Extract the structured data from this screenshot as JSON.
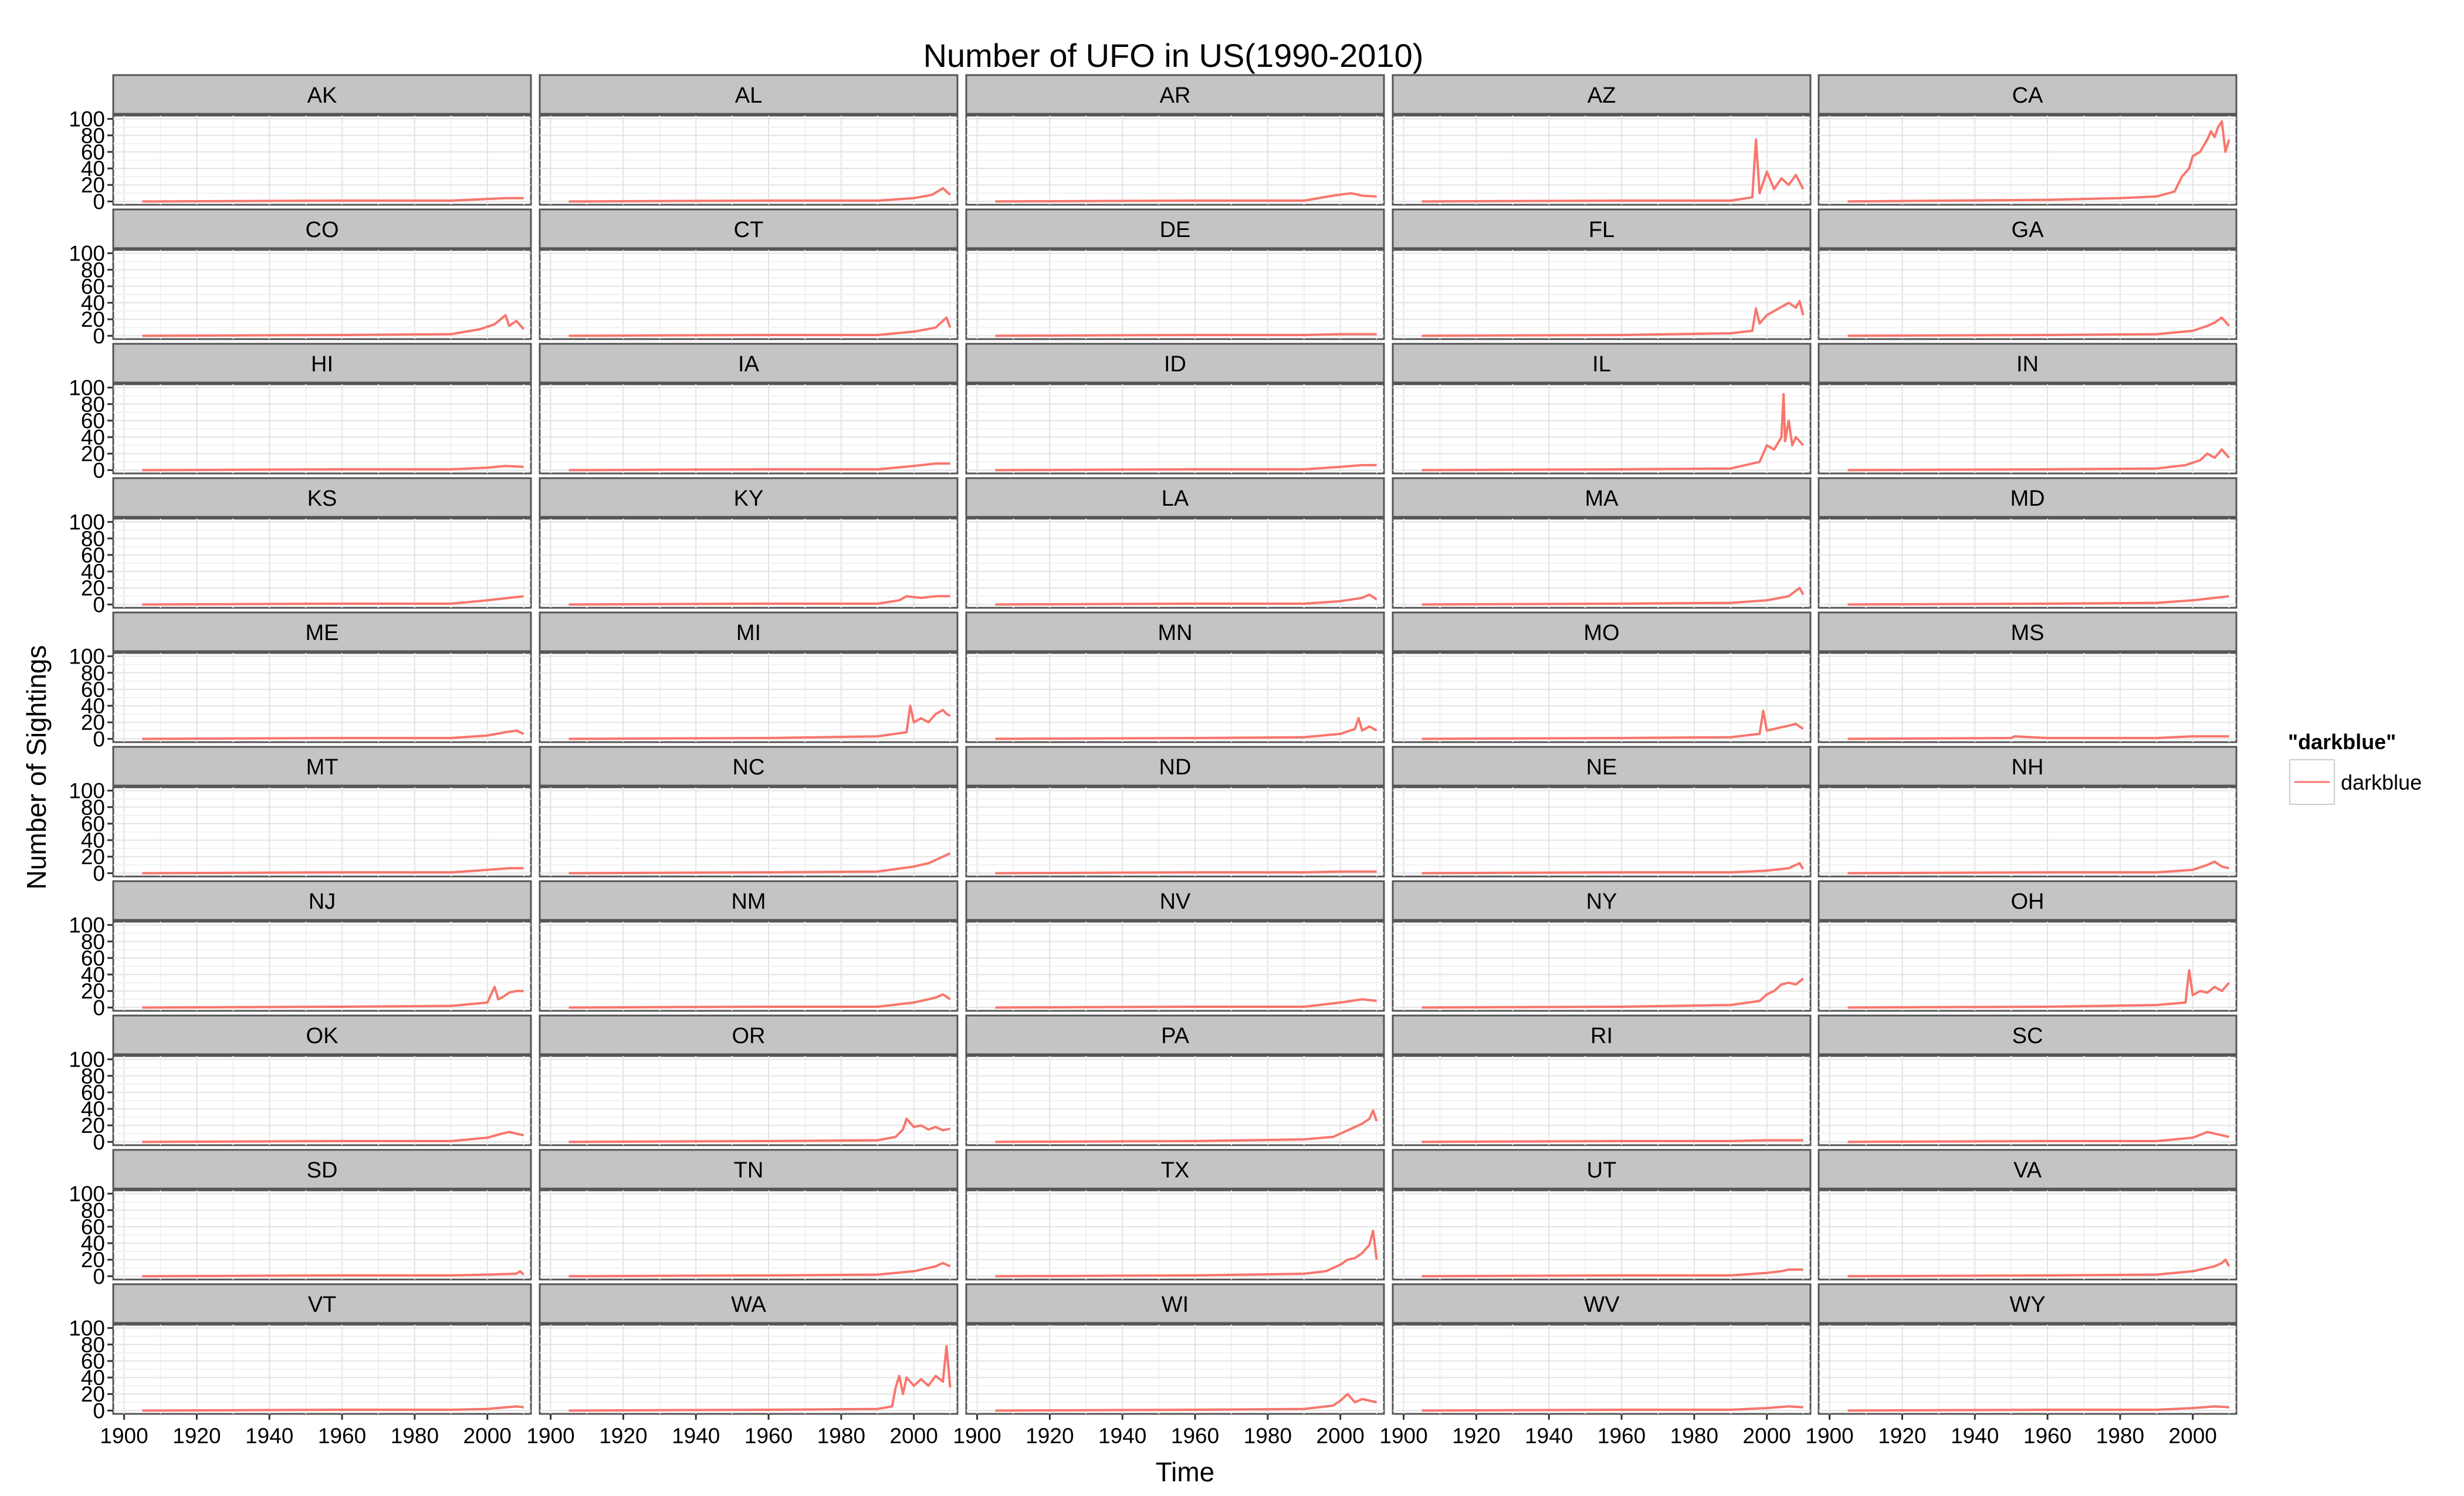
{
  "chart_data": {
    "type": "line",
    "title": "Number of UFO in US(1990-2010)",
    "xlabel": "Time",
    "ylabel": "Number of Sightings",
    "xlim": [
      1897,
      2012
    ],
    "ylim": [
      -4,
      104
    ],
    "x_ticks": [
      1900,
      1920,
      1940,
      1960,
      1980,
      2000
    ],
    "y_ticks": [
      0,
      20,
      40,
      60,
      80,
      100
    ],
    "grid": true,
    "layout": {
      "columns": 5,
      "rows": 10
    },
    "line_color": "#F8766D",
    "legend": {
      "title": "\"darkblue\"",
      "label": "darkblue",
      "position": "right"
    },
    "panels": [
      {
        "state": "AK",
        "x": [
          1905,
          1960,
          1990,
          2000,
          2005,
          2010
        ],
        "y": [
          0,
          1,
          1,
          3,
          4,
          4
        ]
      },
      {
        "state": "AL",
        "x": [
          1905,
          1960,
          1990,
          2000,
          2005,
          2008,
          2010
        ],
        "y": [
          0,
          1,
          1,
          4,
          8,
          16,
          8
        ]
      },
      {
        "state": "AR",
        "x": [
          1905,
          1960,
          1990,
          1998,
          2003,
          2006,
          2010
        ],
        "y": [
          0,
          1,
          1,
          7,
          10,
          7,
          6
        ]
      },
      {
        "state": "AZ",
        "x": [
          1905,
          1960,
          1990,
          1996,
          1997,
          1998,
          2000,
          2002,
          2004,
          2006,
          2008,
          2010
        ],
        "y": [
          0,
          1,
          1,
          5,
          75,
          10,
          36,
          15,
          28,
          20,
          32,
          15
        ]
      },
      {
        "state": "CA",
        "x": [
          1905,
          1960,
          1980,
          1990,
          1995,
          1997,
          1999,
          2000,
          2002,
          2004,
          2005,
          2006,
          2007,
          2008,
          2009,
          2010
        ],
        "y": [
          0,
          2,
          4,
          6,
          12,
          30,
          40,
          55,
          60,
          75,
          85,
          78,
          90,
          97,
          60,
          75
        ]
      },
      {
        "state": "CO",
        "x": [
          1905,
          1960,
          1990,
          1998,
          2002,
          2005,
          2006,
          2008,
          2010
        ],
        "y": [
          0,
          1,
          2,
          8,
          14,
          25,
          12,
          18,
          8
        ]
      },
      {
        "state": "CT",
        "x": [
          1905,
          1960,
          1990,
          2000,
          2006,
          2009,
          2010
        ],
        "y": [
          0,
          1,
          1,
          5,
          10,
          22,
          10
        ]
      },
      {
        "state": "DE",
        "x": [
          1905,
          1960,
          1990,
          2000,
          2010
        ],
        "y": [
          0,
          1,
          1,
          2,
          2
        ]
      },
      {
        "state": "FL",
        "x": [
          1905,
          1960,
          1990,
          1996,
          1997,
          1998,
          2000,
          2002,
          2004,
          2006,
          2008,
          2009,
          2010
        ],
        "y": [
          0,
          1,
          3,
          6,
          33,
          15,
          25,
          30,
          35,
          40,
          34,
          42,
          25
        ]
      },
      {
        "state": "GA",
        "x": [
          1905,
          1960,
          1990,
          2000,
          2004,
          2006,
          2008,
          2010
        ],
        "y": [
          0,
          1,
          2,
          6,
          12,
          16,
          22,
          12
        ]
      },
      {
        "state": "HI",
        "x": [
          1905,
          1960,
          1990,
          2000,
          2005,
          2010
        ],
        "y": [
          0,
          1,
          1,
          3,
          5,
          4
        ]
      },
      {
        "state": "IA",
        "x": [
          1905,
          1960,
          1990,
          2000,
          2006,
          2010
        ],
        "y": [
          0,
          1,
          1,
          5,
          8,
          8
        ]
      },
      {
        "state": "ID",
        "x": [
          1905,
          1960,
          1990,
          2000,
          2006,
          2010
        ],
        "y": [
          0,
          1,
          1,
          4,
          6,
          6
        ]
      },
      {
        "state": "IL",
        "x": [
          1905,
          1960,
          1990,
          1998,
          2000,
          2002,
          2004,
          2004.6,
          2005,
          2006,
          2007,
          2008,
          2010
        ],
        "y": [
          0,
          1,
          2,
          10,
          30,
          25,
          40,
          92,
          35,
          60,
          30,
          40,
          30
        ]
      },
      {
        "state": "IN",
        "x": [
          1905,
          1960,
          1990,
          1998,
          2002,
          2004,
          2006,
          2008,
          2010
        ],
        "y": [
          0,
          1,
          2,
          6,
          12,
          20,
          15,
          25,
          15
        ]
      },
      {
        "state": "KS",
        "x": [
          1905,
          1960,
          1990,
          2000,
          2006,
          2010
        ],
        "y": [
          0,
          1,
          1,
          5,
          8,
          10
        ]
      },
      {
        "state": "KY",
        "x": [
          1905,
          1960,
          1990,
          1996,
          1998,
          2002,
          2006,
          2010
        ],
        "y": [
          0,
          1,
          1,
          5,
          10,
          8,
          10,
          10
        ]
      },
      {
        "state": "LA",
        "x": [
          1905,
          1960,
          1990,
          2000,
          2006,
          2008,
          2010
        ],
        "y": [
          0,
          1,
          1,
          4,
          8,
          12,
          6
        ]
      },
      {
        "state": "MA",
        "x": [
          1905,
          1960,
          1990,
          2000,
          2006,
          2009,
          2010
        ],
        "y": [
          0,
          1,
          2,
          5,
          10,
          20,
          12
        ]
      },
      {
        "state": "MD",
        "x": [
          1905,
          1960,
          1990,
          2000,
          2006,
          2010
        ],
        "y": [
          0,
          1,
          2,
          5,
          8,
          10
        ]
      },
      {
        "state": "ME",
        "x": [
          1905,
          1960,
          1990,
          2000,
          2005,
          2008,
          2010
        ],
        "y": [
          0,
          1,
          1,
          4,
          8,
          10,
          6
        ]
      },
      {
        "state": "MI",
        "x": [
          1905,
          1960,
          1990,
          1998,
          1999,
          2000,
          2002,
          2004,
          2006,
          2008,
          2009,
          2010
        ],
        "y": [
          0,
          1,
          3,
          8,
          40,
          20,
          25,
          20,
          30,
          35,
          30,
          28
        ]
      },
      {
        "state": "MN",
        "x": [
          1905,
          1960,
          1990,
          2000,
          2004,
          2005,
          2006,
          2008,
          2010
        ],
        "y": [
          0,
          1,
          2,
          6,
          12,
          25,
          10,
          15,
          10
        ]
      },
      {
        "state": "MO",
        "x": [
          1905,
          1960,
          1990,
          1998,
          1999,
          2000,
          2004,
          2006,
          2008,
          2010
        ],
        "y": [
          0,
          1,
          2,
          6,
          34,
          10,
          14,
          16,
          18,
          12
        ]
      },
      {
        "state": "MS",
        "x": [
          1905,
          1950,
          1951,
          1960,
          1990,
          2000,
          2010
        ],
        "y": [
          0,
          1,
          3,
          1,
          1,
          3,
          3
        ]
      },
      {
        "state": "MT",
        "x": [
          1905,
          1960,
          1990,
          2000,
          2006,
          2010
        ],
        "y": [
          0,
          1,
          1,
          4,
          6,
          6
        ]
      },
      {
        "state": "NC",
        "x": [
          1905,
          1960,
          1990,
          2000,
          2004,
          2006,
          2008,
          2010
        ],
        "y": [
          0,
          1,
          2,
          8,
          12,
          16,
          20,
          24
        ]
      },
      {
        "state": "ND",
        "x": [
          1905,
          1960,
          1990,
          2000,
          2010
        ],
        "y": [
          0,
          1,
          1,
          2,
          2
        ]
      },
      {
        "state": "NE",
        "x": [
          1905,
          1960,
          1990,
          2000,
          2006,
          2009,
          2010
        ],
        "y": [
          0,
          1,
          1,
          3,
          6,
          12,
          5
        ]
      },
      {
        "state": "NH",
        "x": [
          1905,
          1960,
          1990,
          2000,
          2004,
          2006,
          2008,
          2010
        ],
        "y": [
          0,
          1,
          1,
          4,
          10,
          14,
          8,
          6
        ]
      },
      {
        "state": "NJ",
        "x": [
          1905,
          1960,
          1990,
          2000,
          2002,
          2003,
          2004,
          2006,
          2008,
          2010
        ],
        "y": [
          0,
          1,
          2,
          6,
          25,
          10,
          12,
          18,
          20,
          20
        ]
      },
      {
        "state": "NM",
        "x": [
          1905,
          1960,
          1990,
          2000,
          2006,
          2008,
          2010
        ],
        "y": [
          0,
          1,
          1,
          6,
          12,
          16,
          10
        ]
      },
      {
        "state": "NV",
        "x": [
          1905,
          1960,
          1990,
          2000,
          2006,
          2010
        ],
        "y": [
          0,
          1,
          1,
          6,
          10,
          8
        ]
      },
      {
        "state": "NY",
        "x": [
          1905,
          1960,
          1990,
          1998,
          2000,
          2002,
          2004,
          2006,
          2008,
          2010
        ],
        "y": [
          0,
          1,
          3,
          8,
          16,
          20,
          28,
          30,
          28,
          35
        ]
      },
      {
        "state": "OH",
        "x": [
          1905,
          1960,
          1990,
          1998,
          1999,
          2000,
          2002,
          2004,
          2006,
          2008,
          2010
        ],
        "y": [
          0,
          1,
          3,
          6,
          45,
          15,
          20,
          18,
          25,
          20,
          30
        ]
      },
      {
        "state": "OK",
        "x": [
          1905,
          1960,
          1990,
          2000,
          2004,
          2006,
          2008,
          2010
        ],
        "y": [
          0,
          1,
          1,
          5,
          10,
          12,
          10,
          8
        ]
      },
      {
        "state": "OR",
        "x": [
          1905,
          1960,
          1990,
          1995,
          1997,
          1998,
          2000,
          2002,
          2004,
          2006,
          2008,
          2010
        ],
        "y": [
          0,
          1,
          2,
          6,
          15,
          28,
          18,
          20,
          15,
          18,
          14,
          16
        ]
      },
      {
        "state": "PA",
        "x": [
          1905,
          1960,
          1990,
          1998,
          2000,
          2002,
          2004,
          2006,
          2008,
          2009,
          2010
        ],
        "y": [
          0,
          1,
          3,
          6,
          10,
          14,
          18,
          22,
          28,
          38,
          25
        ]
      },
      {
        "state": "RI",
        "x": [
          1905,
          1960,
          1990,
          2000,
          2010
        ],
        "y": [
          0,
          1,
          1,
          2,
          2
        ]
      },
      {
        "state": "SC",
        "x": [
          1905,
          1960,
          1990,
          2000,
          2004,
          2006,
          2008,
          2010
        ],
        "y": [
          0,
          1,
          1,
          5,
          12,
          10,
          8,
          6
        ]
      },
      {
        "state": "SD",
        "x": [
          1905,
          1960,
          1990,
          2000,
          2008,
          2009,
          2010
        ],
        "y": [
          0,
          1,
          1,
          2,
          3,
          6,
          2
        ]
      },
      {
        "state": "TN",
        "x": [
          1905,
          1960,
          1990,
          2000,
          2004,
          2006,
          2008,
          2010
        ],
        "y": [
          0,
          1,
          2,
          6,
          10,
          12,
          16,
          12
        ]
      },
      {
        "state": "TX",
        "x": [
          1905,
          1960,
          1990,
          1996,
          1998,
          2000,
          2002,
          2004,
          2006,
          2008,
          2009,
          2010
        ],
        "y": [
          0,
          1,
          3,
          6,
          10,
          14,
          20,
          22,
          28,
          38,
          55,
          20
        ]
      },
      {
        "state": "UT",
        "x": [
          1905,
          1960,
          1990,
          2000,
          2004,
          2006,
          2010
        ],
        "y": [
          0,
          1,
          1,
          4,
          6,
          8,
          8
        ]
      },
      {
        "state": "VA",
        "x": [
          1905,
          1960,
          1990,
          2000,
          2004,
          2006,
          2008,
          2009,
          2010
        ],
        "y": [
          0,
          1,
          2,
          6,
          10,
          12,
          16,
          20,
          12
        ]
      },
      {
        "state": "VT",
        "x": [
          1905,
          1960,
          1990,
          2000,
          2008,
          2010
        ],
        "y": [
          0,
          1,
          1,
          2,
          5,
          4
        ]
      },
      {
        "state": "WA",
        "x": [
          1905,
          1960,
          1990,
          1994,
          1995,
          1996,
          1997,
          1998,
          2000,
          2002,
          2004,
          2006,
          2008,
          2009,
          2010
        ],
        "y": [
          0,
          1,
          2,
          5,
          28,
          42,
          20,
          40,
          30,
          38,
          30,
          42,
          35,
          78,
          28
        ]
      },
      {
        "state": "WI",
        "x": [
          1905,
          1960,
          1990,
          1998,
          2000,
          2002,
          2004,
          2006,
          2008,
          2010
        ],
        "y": [
          0,
          1,
          2,
          6,
          12,
          20,
          10,
          14,
          12,
          10
        ]
      },
      {
        "state": "WV",
        "x": [
          1905,
          1960,
          1990,
          2000,
          2006,
          2010
        ],
        "y": [
          0,
          1,
          1,
          3,
          5,
          4
        ]
      },
      {
        "state": "WY",
        "x": [
          1905,
          1960,
          1990,
          2000,
          2006,
          2010
        ],
        "y": [
          0,
          1,
          1,
          3,
          5,
          4
        ]
      }
    ]
  }
}
